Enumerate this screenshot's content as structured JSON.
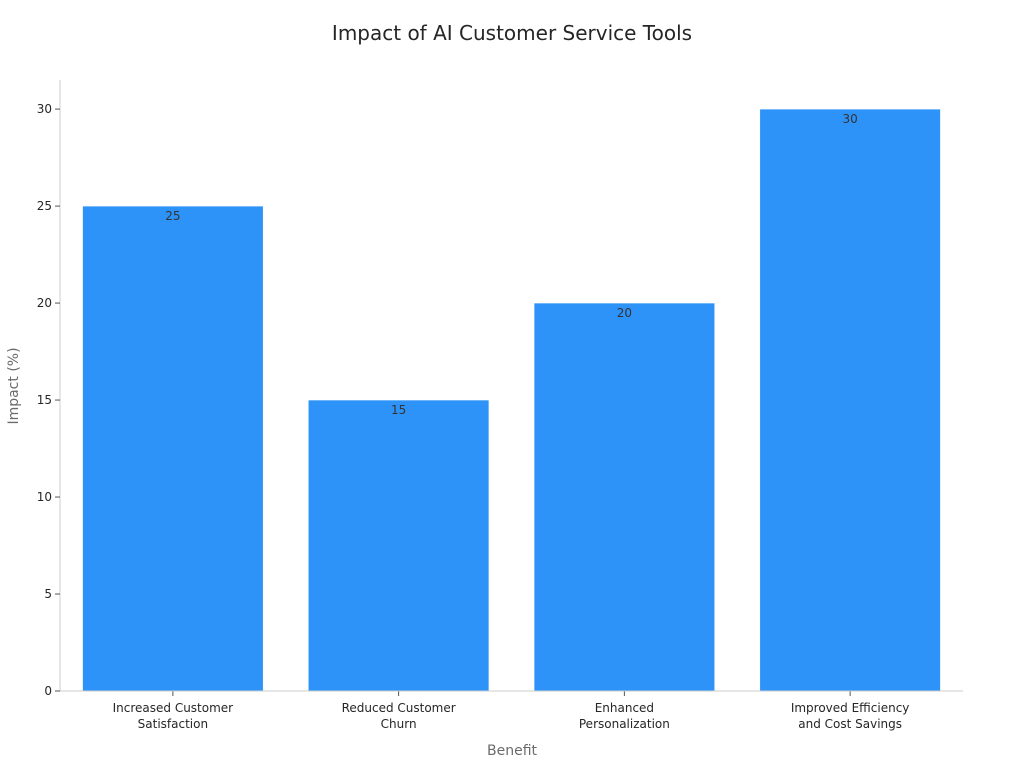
{
  "chart_data": {
    "type": "bar",
    "title": "Impact of AI Customer Service Tools",
    "xlabel": "Benefit",
    "ylabel": "Impact (%)",
    "categories": [
      [
        "Increased Customer",
        "Satisfaction"
      ],
      [
        "Reduced Customer",
        "Churn"
      ],
      [
        "Enhanced",
        "Personalization"
      ],
      [
        "Improved Efficiency",
        "and Cost Savings"
      ]
    ],
    "values": [
      25,
      15,
      20,
      30
    ],
    "data_labels": [
      "25",
      "15",
      "20",
      "30"
    ],
    "ylim": [
      0,
      31.5
    ],
    "yticks": [
      0,
      5,
      10,
      15,
      20,
      25,
      30
    ],
    "ytick_labels": [
      "0",
      "5",
      "10",
      "15",
      "20",
      "25",
      "30"
    ],
    "bar_color": "#2E93F8",
    "grid": false,
    "legend": "none"
  }
}
